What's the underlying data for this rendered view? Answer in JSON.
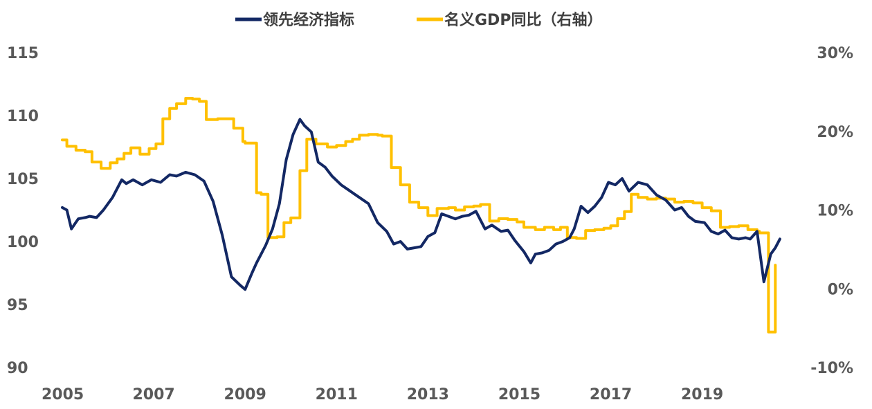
{
  "chart_data": {
    "type": "line",
    "title": "",
    "xlabel": "",
    "ylabel": "",
    "colors": {
      "leading": "#132864",
      "gdp": "#FFC000"
    },
    "x_ticks": [
      "2005",
      "2007",
      "2009",
      "2011",
      "2013",
      "2015",
      "2017",
      "2019"
    ],
    "x_tick_years": [
      2005,
      2007,
      2009,
      2011,
      2013,
      2015,
      2017,
      2019
    ],
    "xlim": [
      2005,
      2021.05
    ],
    "y_left": {
      "ticks": [
        "90",
        "95",
        "100",
        "105",
        "110",
        "115"
      ],
      "values": [
        90,
        95,
        100,
        105,
        110,
        115
      ],
      "lim": [
        90,
        115
      ]
    },
    "y_right": {
      "ticks": [
        "-10%",
        "0%",
        "10%",
        "20%",
        "30%"
      ],
      "values": [
        -10,
        0,
        10,
        20,
        30
      ],
      "lim": [
        -10,
        30
      ]
    },
    "legend": [
      "领先经济指标",
      "名义GDP同比（右轴）"
    ],
    "series": [
      {
        "name": "领先经济指标",
        "axis": "left",
        "x": [
          2005.0,
          2005.1,
          2005.2,
          2005.35,
          2005.5,
          2005.6,
          2005.75,
          2005.9,
          2006.1,
          2006.3,
          2006.4,
          2006.55,
          2006.75,
          2006.95,
          2007.15,
          2007.35,
          2007.5,
          2007.7,
          2007.9,
          2008.1,
          2008.3,
          2008.5,
          2008.7,
          2008.9,
          2009.0,
          2009.15,
          2009.25,
          2009.45,
          2009.6,
          2009.75,
          2009.9,
          2010.05,
          2010.2,
          2010.3,
          2010.45,
          2010.6,
          2010.75,
          2010.9,
          2011.1,
          2011.3,
          2011.5,
          2011.7,
          2011.9,
          2012.1,
          2012.25,
          2012.4,
          2012.55,
          2012.7,
          2012.85,
          2013.0,
          2013.15,
          2013.3,
          2013.45,
          2013.6,
          2013.75,
          2013.9,
          2014.05,
          2014.25,
          2014.4,
          2014.6,
          2014.75,
          2014.9,
          2015.1,
          2015.25,
          2015.35,
          2015.5,
          2015.65,
          2015.8,
          2015.95,
          2016.1,
          2016.2,
          2016.35,
          2016.5,
          2016.65,
          2016.8,
          2016.95,
          2017.1,
          2017.25,
          2017.4,
          2017.6,
          2017.8,
          2018.0,
          2018.2,
          2018.4,
          2018.55,
          2018.7,
          2018.85,
          2019.05,
          2019.2,
          2019.35,
          2019.5,
          2019.65,
          2019.8,
          2019.95,
          2020.05,
          2020.2,
          2020.35,
          2020.5,
          2020.6,
          2020.7
        ],
        "values": [
          102.7,
          102.5,
          101.0,
          101.8,
          101.9,
          102.0,
          101.9,
          102.5,
          103.5,
          104.9,
          104.6,
          104.9,
          104.5,
          104.9,
          104.7,
          105.3,
          105.2,
          105.5,
          105.3,
          104.8,
          103.2,
          100.5,
          97.2,
          96.5,
          96.2,
          97.5,
          98.3,
          99.7,
          101.0,
          103.0,
          106.5,
          108.5,
          109.7,
          109.2,
          108.7,
          106.3,
          105.9,
          105.2,
          104.5,
          104.0,
          103.5,
          103.0,
          101.5,
          100.8,
          99.8,
          100.0,
          99.4,
          99.5,
          99.6,
          100.4,
          100.7,
          102.2,
          102.0,
          101.8,
          102.0,
          102.1,
          102.4,
          101.0,
          101.3,
          100.8,
          100.9,
          100.1,
          99.2,
          98.3,
          99.0,
          99.1,
          99.3,
          99.8,
          100.0,
          100.3,
          101.0,
          102.8,
          102.3,
          102.8,
          103.5,
          104.7,
          104.5,
          105.0,
          104.0,
          104.7,
          104.5,
          103.7,
          103.3,
          102.5,
          102.7,
          102.0,
          101.6,
          101.5,
          100.8,
          100.6,
          100.9,
          100.3,
          100.2,
          100.3,
          100.2,
          100.8,
          96.8,
          99.0,
          99.5,
          100.2
        ]
      },
      {
        "name": "名义GDP同比（右轴）",
        "axis": "right",
        "x": [
          2005.0,
          2005.1,
          2005.3,
          2005.5,
          2005.65,
          2005.85,
          2006.05,
          2006.2,
          2006.35,
          2006.5,
          2006.7,
          2006.9,
          2007.05,
          2007.2,
          2007.35,
          2007.5,
          2007.7,
          2007.85,
          2008.0,
          2008.15,
          2008.4,
          2008.6,
          2008.75,
          2008.95,
          2009.0,
          2009.25,
          2009.35,
          2009.5,
          2009.7,
          2009.85,
          2010.0,
          2010.2,
          2010.35,
          2010.55,
          2010.8,
          2011.0,
          2011.2,
          2011.35,
          2011.5,
          2011.7,
          2011.9,
          2012.0,
          2012.2,
          2012.4,
          2012.6,
          2012.8,
          2013.0,
          2013.2,
          2013.45,
          2013.6,
          2013.8,
          2014.0,
          2014.15,
          2014.35,
          2014.55,
          2014.75,
          2014.95,
          2015.1,
          2015.35,
          2015.55,
          2015.75,
          2015.9,
          2016.05,
          2016.25,
          2016.45,
          2016.65,
          2016.85,
          2017.0,
          2017.15,
          2017.3,
          2017.45,
          2017.6,
          2017.8,
          2018.0,
          2018.2,
          2018.4,
          2018.6,
          2018.8,
          2019.0,
          2019.2,
          2019.4,
          2019.6,
          2019.8,
          2020.0,
          2020.2,
          2020.25,
          2020.45,
          2020.5,
          2020.6
        ],
        "values": [
          18.9,
          18.1,
          17.6,
          17.4,
          16.1,
          15.3,
          16.0,
          16.5,
          17.2,
          17.9,
          17.1,
          17.8,
          18.4,
          21.6,
          22.9,
          23.5,
          24.2,
          24.1,
          23.8,
          21.5,
          21.6,
          21.6,
          20.4,
          18.7,
          18.5,
          12.2,
          12.0,
          6.5,
          6.6,
          8.4,
          9.0,
          15.0,
          19.0,
          18.4,
          18.0,
          18.2,
          18.7,
          19.0,
          19.5,
          19.6,
          19.5,
          19.4,
          15.4,
          13.2,
          11.0,
          10.3,
          9.3,
          10.2,
          10.3,
          10.0,
          10.4,
          10.5,
          10.7,
          8.6,
          8.9,
          8.8,
          8.5,
          7.8,
          7.5,
          7.8,
          7.5,
          7.8,
          6.5,
          6.4,
          7.4,
          7.5,
          7.7,
          8.0,
          8.9,
          9.8,
          12.0,
          11.6,
          11.4,
          11.5,
          11.4,
          11.0,
          11.1,
          10.9,
          10.3,
          9.9,
          7.8,
          7.9,
          8.0,
          7.5,
          7.3,
          7.1,
          -5.5,
          -5.5,
          3.0
        ]
      }
    ]
  }
}
